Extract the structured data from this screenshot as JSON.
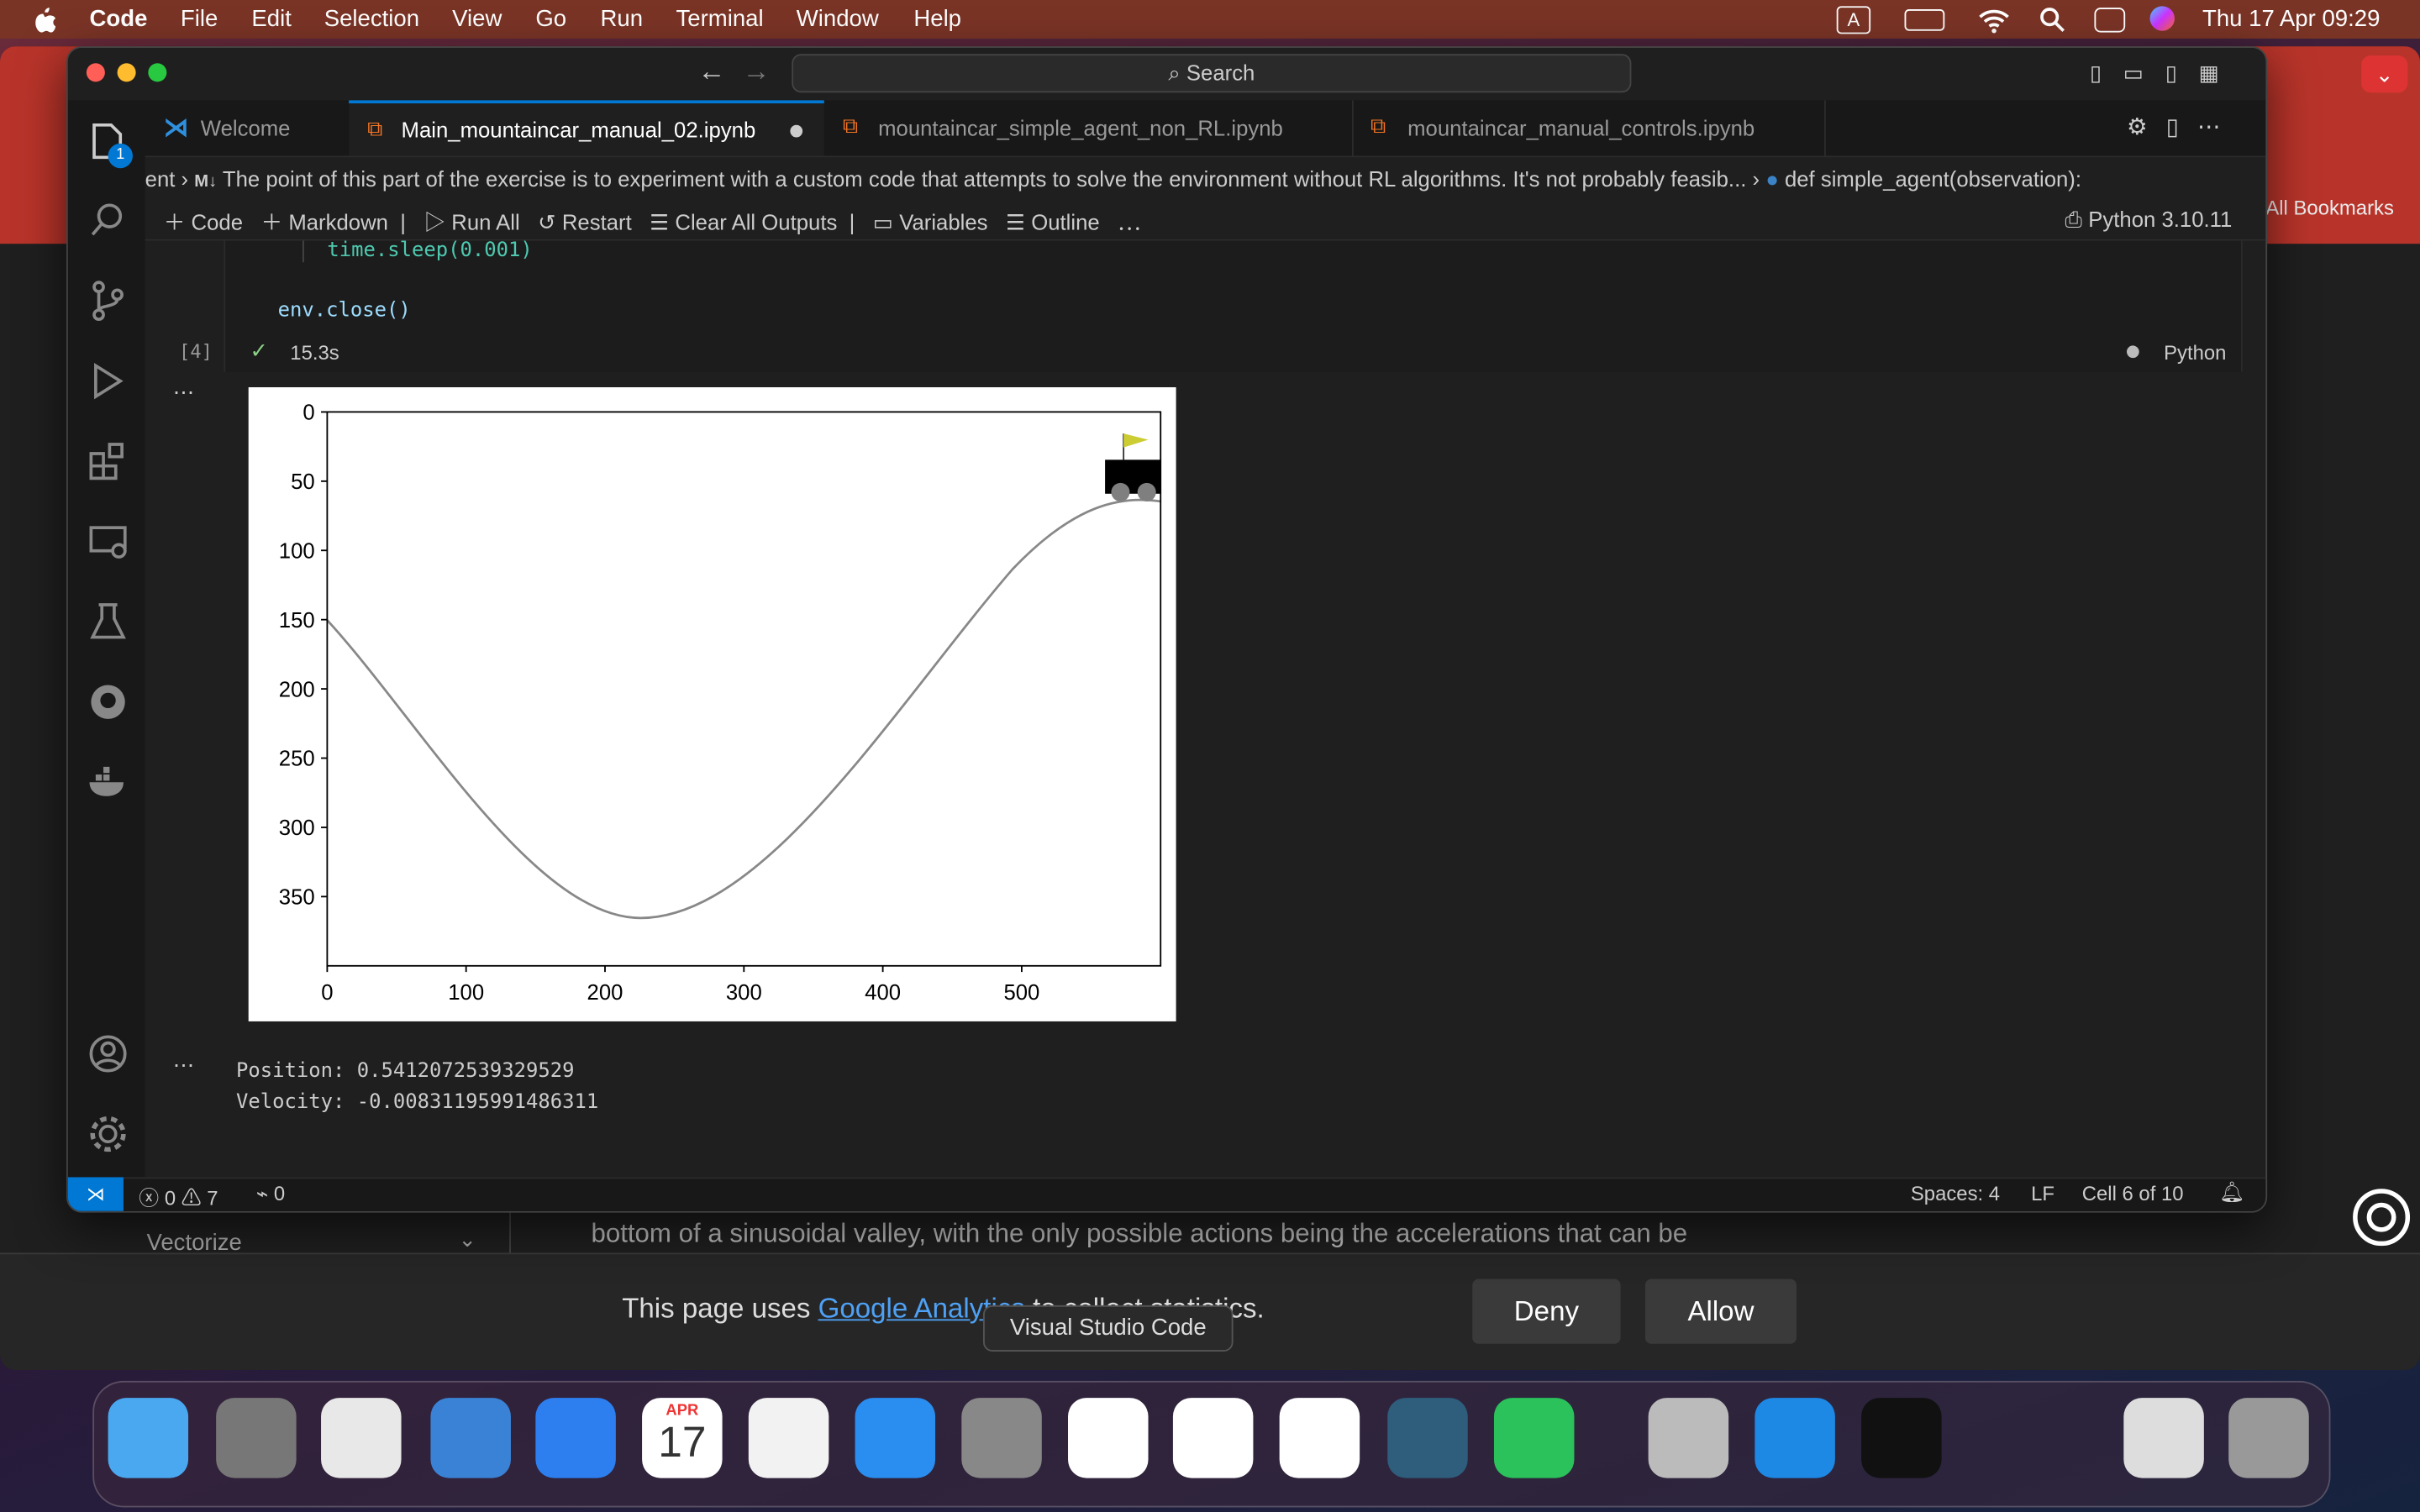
{
  "menubar": {
    "app": "Code",
    "items": [
      "File",
      "Edit",
      "Selection",
      "View",
      "Go",
      "Run",
      "Terminal",
      "Window",
      "Help"
    ],
    "input": "A",
    "clock": "Thu 17 Apr  09:29"
  },
  "browser": {
    "bookmarks": "All Bookmarks",
    "sidebar_item": "Vectorize",
    "paragraph": "bottom of a sinusoidal valley, with the only possible actions being the accelerations that can be",
    "cookie": {
      "before": "This page uses ",
      "link": "Google Analytics",
      "after": " to collect statistics."
    },
    "deny": "Deny",
    "allow": "Allow"
  },
  "vscode": {
    "search": "Search",
    "explorer_badge": "1",
    "tabs": [
      "Welcome",
      "Main_mountaincar_manual_02.ipynb",
      "mountaincar_simple_agent_non_RL.ipynb",
      "mountaincar_manual_controls.ipynb"
    ],
    "breadcrumb": [
      "ent",
      "M↓",
      "The point of this part of the exercise is to experiment with a custom code that attempts to solve the environment without RL algorithms. It's not probably feasib...",
      "def simple_agent(observation):"
    ],
    "toolbar": [
      "Code",
      "Markdown",
      "Run All",
      "Restart",
      "Clear All Outputs",
      "Variables",
      "Outline"
    ],
    "kernel": "Python 3.10.11",
    "code": [
      "time.sleep(0.001)",
      "env.close()"
    ],
    "cell": {
      "exec_count": "[4]",
      "duration": "15.3s",
      "language": "Python"
    },
    "output": [
      "Position: 0.5412072539329529",
      "Velocity: -0.00831195991486311"
    ],
    "status": {
      "errors": "0",
      "warnings": "7",
      "ports": "0",
      "spaces": "Spaces: 4",
      "eol": "LF",
      "cell": "Cell 6 of 10"
    }
  },
  "plot": {
    "xlim": [
      0,
      600
    ],
    "ylim": [
      400,
      0
    ],
    "xticks": [
      0,
      100,
      200,
      300,
      400,
      500
    ],
    "yticks": [
      0,
      50,
      100,
      150,
      200,
      250,
      300,
      350
    ]
  },
  "dock": {
    "tooltip": "Visual Studio Code",
    "calendar_month": "APR",
    "calendar_day": "17"
  }
}
